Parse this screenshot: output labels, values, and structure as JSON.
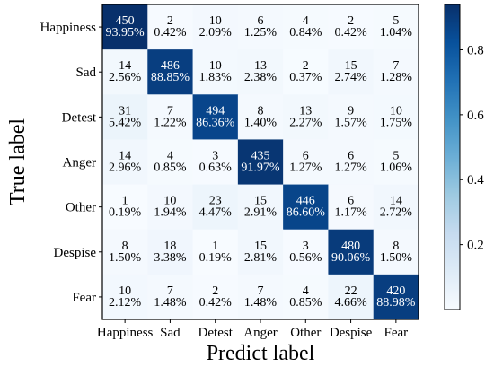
{
  "chart_data": {
    "type": "heatmap",
    "title": "",
    "xlabel": "Predict label",
    "ylabel": "True label",
    "labels": [
      "Happiness",
      "Sad",
      "Detest",
      "Anger",
      "Other",
      "Despise",
      "Fear"
    ],
    "counts": [
      [
        450,
        2,
        10,
        6,
        4,
        2,
        5
      ],
      [
        14,
        486,
        10,
        13,
        2,
        15,
        7
      ],
      [
        31,
        7,
        494,
        8,
        13,
        9,
        10
      ],
      [
        14,
        4,
        3,
        435,
        6,
        6,
        5
      ],
      [
        1,
        10,
        23,
        15,
        446,
        6,
        14
      ],
      [
        8,
        18,
        1,
        15,
        3,
        480,
        8
      ],
      [
        10,
        7,
        2,
        7,
        4,
        22,
        420
      ]
    ],
    "percents": [
      [
        "93.95%",
        "0.42%",
        "2.09%",
        "1.25%",
        "0.84%",
        "0.42%",
        "1.04%"
      ],
      [
        "2.56%",
        "88.85%",
        "1.83%",
        "2.38%",
        "0.37%",
        "2.74%",
        "1.28%"
      ],
      [
        "5.42%",
        "1.22%",
        "86.36%",
        "1.40%",
        "2.27%",
        "1.57%",
        "1.75%"
      ],
      [
        "2.96%",
        "0.85%",
        "0.63%",
        "91.97%",
        "1.27%",
        "1.27%",
        "1.06%"
      ],
      [
        "0.19%",
        "1.94%",
        "4.47%",
        "2.91%",
        "86.60%",
        "1.17%",
        "2.72%"
      ],
      [
        "1.50%",
        "3.38%",
        "0.19%",
        "2.81%",
        "0.56%",
        "90.06%",
        "1.50%"
      ],
      [
        "2.12%",
        "1.48%",
        "0.42%",
        "1.48%",
        "0.85%",
        "4.66%",
        "88.98%"
      ]
    ],
    "colorbar": {
      "min": 0.0,
      "max": 0.9395,
      "ticks": [
        0.2,
        0.4,
        0.6,
        0.8
      ],
      "tick_labels": [
        "0.2",
        "0.4",
        "0.6",
        "0.8"
      ]
    },
    "colormap": [
      "#f7fbff",
      "#deebf7",
      "#c6dbef",
      "#9ecae1",
      "#6baed6",
      "#4292c6",
      "#2171b5",
      "#08519c",
      "#08306b"
    ],
    "grid": false
  }
}
